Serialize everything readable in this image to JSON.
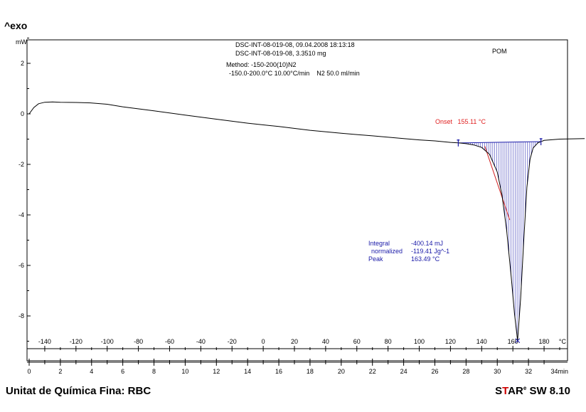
{
  "header": {
    "exo_label": "^exo"
  },
  "info": {
    "line1": "DSC-INT-08-019-08, 09.04.2008 18:13:18",
    "line2": "DSC-INT-08-019-08, 3.3510 mg",
    "line3": "Method: -150-200(10)N2",
    "line4": "-150.0-200.0°C 10.00°C/min    N2 50.0 ml/min",
    "sample": "POM"
  },
  "annotations": {
    "onset": "Onset   155.11 °C",
    "integral_label": "Integral",
    "integral_value": "-400.14 mJ",
    "normalized_label": "normalized",
    "normalized_value": "-119.41 Jg^-1",
    "peak_label": "Peak",
    "peak_value": "163.49 °C"
  },
  "footer": {
    "left": "Unitat de Química Fina: RBC",
    "brand_s": "S",
    "brand_t": "T",
    "brand_ar": "AR",
    "brand_e": "e",
    "brand_rest": " SW 8.10"
  },
  "chart_data": {
    "type": "line",
    "ylabel": "mW",
    "ylim": [
      -9.5,
      2.9
    ],
    "xlim_min": [
      0,
      35.6
    ],
    "temp_unit": "°C",
    "time_unit": "34min",
    "y_ticks": [
      2,
      0,
      -2,
      -4,
      -6,
      -8
    ],
    "temp_ticks": [
      -140,
      -120,
      -100,
      -80,
      -60,
      -40,
      -20,
      0,
      20,
      40,
      60,
      80,
      100,
      120,
      140,
      160,
      180
    ],
    "time_ticks": [
      0,
      2,
      4,
      6,
      8,
      10,
      12,
      14,
      16,
      18,
      20,
      22,
      24,
      26,
      28,
      30,
      32
    ],
    "series": [
      {
        "x": [
          0,
          0.3,
          0.6,
          1,
          1.5,
          2,
          3,
          4,
          5,
          6,
          8,
          10,
          12,
          14,
          16,
          18,
          20,
          22,
          24,
          25,
          26,
          27,
          27.5,
          28,
          28.5,
          29,
          29.5,
          30,
          30.3,
          30.6,
          30.9,
          31.1,
          31.3,
          31.5,
          31.7,
          31.9,
          32.1,
          32.3,
          32.6,
          33,
          34,
          35.6
        ],
        "y": [
          0.0,
          0.25,
          0.4,
          0.46,
          0.47,
          0.46,
          0.45,
          0.43,
          0.38,
          0.28,
          0.12,
          -0.05,
          -0.21,
          -0.37,
          -0.5,
          -0.65,
          -0.77,
          -0.87,
          -0.98,
          -1.03,
          -1.07,
          -1.13,
          -1.15,
          -1.18,
          -1.23,
          -1.33,
          -1.6,
          -2.3,
          -3.2,
          -4.6,
          -6.5,
          -7.9,
          -8.98,
          -7.3,
          -5.0,
          -2.9,
          -1.8,
          -1.35,
          -1.15,
          -1.05,
          -1.0,
          -0.98
        ]
      }
    ]
  }
}
